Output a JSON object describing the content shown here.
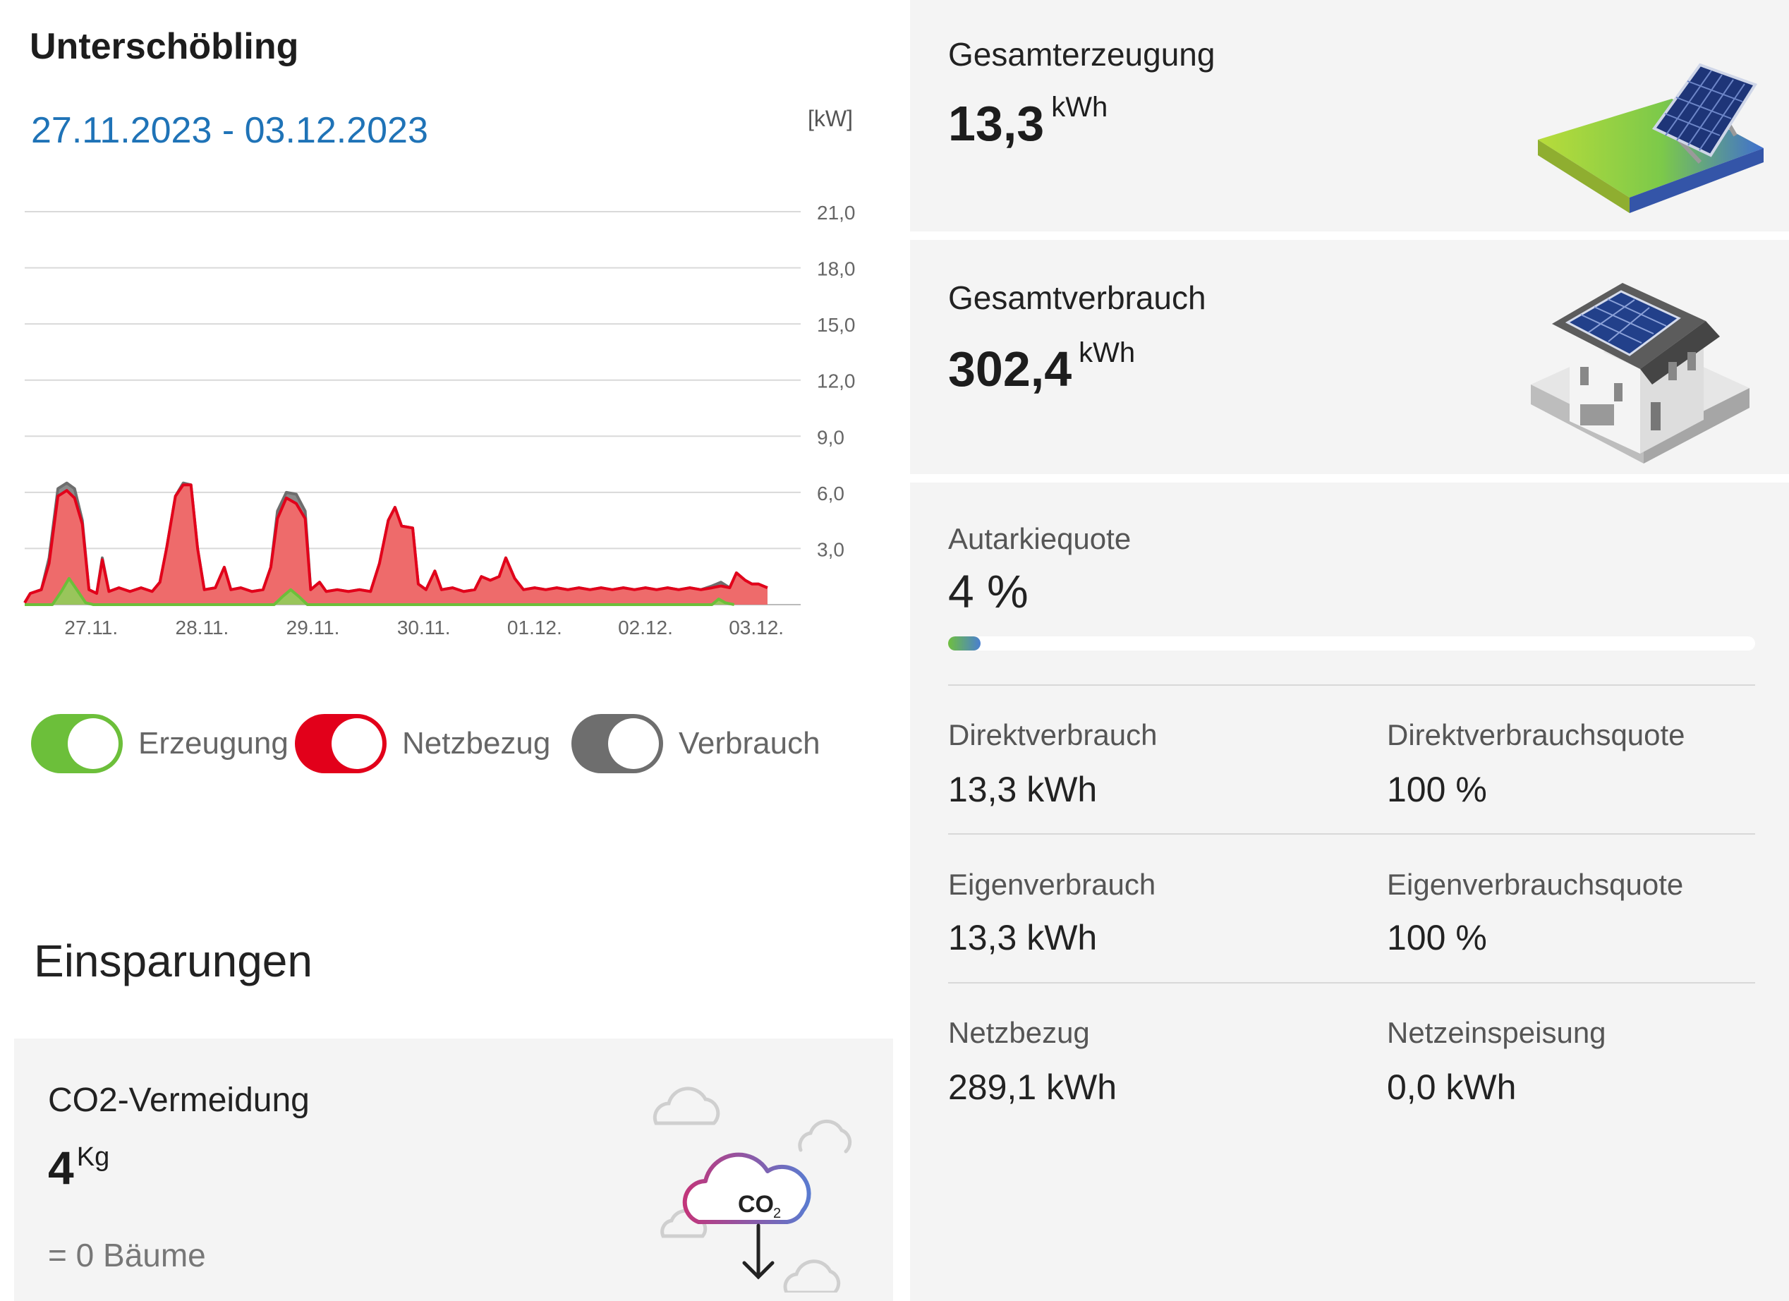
{
  "site": {
    "name": "Unterschöbling"
  },
  "period": {
    "range": "27.11.2023 - 03.12.2023"
  },
  "chart_data": {
    "type": "area",
    "unit": "[kW]",
    "x": [
      "27.11.",
      "28.11.",
      "29.11.",
      "30.11.",
      "01.12.",
      "02.12.",
      "03.12."
    ],
    "xlim": [
      0,
      7
    ],
    "ylim": [
      0,
      21
    ],
    "y_ticks": [
      "3,0",
      "6,0",
      "9,0",
      "12,0",
      "15,0",
      "18,0",
      "21,0"
    ],
    "grid": true,
    "series": [
      {
        "name": "Verbrauch",
        "color": "#777777",
        "points": [
          [
            0,
            0.1
          ],
          [
            0.05,
            0.6
          ],
          [
            0.15,
            0.8
          ],
          [
            0.22,
            2.5
          ],
          [
            0.3,
            6.2
          ],
          [
            0.38,
            6.5
          ],
          [
            0.45,
            6.2
          ],
          [
            0.52,
            4.5
          ],
          [
            0.58,
            0.8
          ],
          [
            0.65,
            0.6
          ],
          [
            0.7,
            2.5
          ],
          [
            0.76,
            0.7
          ],
          [
            0.85,
            0.9
          ],
          [
            0.95,
            0.7
          ],
          [
            1.05,
            0.9
          ],
          [
            1.15,
            0.7
          ],
          [
            1.22,
            1.2
          ],
          [
            1.28,
            3.0
          ],
          [
            1.36,
            5.8
          ],
          [
            1.43,
            6.5
          ],
          [
            1.5,
            6.4
          ],
          [
            1.56,
            3.0
          ],
          [
            1.62,
            0.8
          ],
          [
            1.72,
            0.9
          ],
          [
            1.8,
            2.0
          ],
          [
            1.86,
            0.8
          ],
          [
            1.95,
            0.9
          ],
          [
            2.05,
            0.7
          ],
          [
            2.15,
            0.8
          ],
          [
            2.22,
            2.0
          ],
          [
            2.28,
            5.0
          ],
          [
            2.36,
            6.0
          ],
          [
            2.45,
            5.9
          ],
          [
            2.53,
            5.0
          ],
          [
            2.58,
            0.8
          ],
          [
            2.66,
            1.2
          ],
          [
            2.72,
            0.7
          ],
          [
            2.82,
            0.8
          ],
          [
            2.92,
            0.7
          ],
          [
            3.02,
            0.8
          ],
          [
            3.12,
            0.7
          ],
          [
            3.2,
            2.2
          ],
          [
            3.28,
            4.5
          ],
          [
            3.34,
            5.2
          ],
          [
            3.4,
            4.2
          ],
          [
            3.5,
            4.1
          ],
          [
            3.55,
            1.1
          ],
          [
            3.62,
            0.8
          ],
          [
            3.7,
            1.8
          ],
          [
            3.76,
            0.8
          ],
          [
            3.86,
            0.9
          ],
          [
            3.96,
            0.7
          ],
          [
            4.06,
            0.8
          ],
          [
            4.12,
            1.5
          ],
          [
            4.2,
            1.3
          ],
          [
            4.28,
            1.5
          ],
          [
            4.34,
            2.5
          ],
          [
            4.42,
            1.4
          ],
          [
            4.5,
            0.8
          ],
          [
            4.6,
            0.9
          ],
          [
            4.7,
            0.8
          ],
          [
            4.8,
            0.9
          ],
          [
            4.9,
            0.8
          ],
          [
            5.0,
            0.9
          ],
          [
            5.1,
            0.8
          ],
          [
            5.2,
            0.9
          ],
          [
            5.3,
            0.8
          ],
          [
            5.4,
            0.9
          ],
          [
            5.5,
            0.8
          ],
          [
            5.6,
            0.9
          ],
          [
            5.7,
            0.8
          ],
          [
            5.8,
            0.9
          ],
          [
            5.9,
            0.8
          ],
          [
            6.0,
            0.9
          ],
          [
            6.1,
            0.8
          ],
          [
            6.2,
            1.0
          ],
          [
            6.28,
            1.2
          ],
          [
            6.36,
            0.9
          ],
          [
            6.42,
            1.7
          ],
          [
            6.5,
            1.3
          ],
          [
            6.56,
            1.1
          ],
          [
            6.62,
            1.1
          ],
          [
            6.66,
            1.0
          ],
          [
            6.7,
            0.9
          ]
        ]
      },
      {
        "name": "Netzbezug",
        "color": "#e2001a",
        "points": [
          [
            0,
            0.1
          ],
          [
            0.05,
            0.6
          ],
          [
            0.15,
            0.8
          ],
          [
            0.22,
            2.2
          ],
          [
            0.3,
            5.8
          ],
          [
            0.38,
            6.1
          ],
          [
            0.45,
            5.7
          ],
          [
            0.52,
            4.3
          ],
          [
            0.58,
            0.8
          ],
          [
            0.65,
            0.6
          ],
          [
            0.7,
            2.4
          ],
          [
            0.76,
            0.7
          ],
          [
            0.85,
            0.9
          ],
          [
            0.95,
            0.7
          ],
          [
            1.05,
            0.9
          ],
          [
            1.15,
            0.7
          ],
          [
            1.22,
            1.2
          ],
          [
            1.28,
            3.0
          ],
          [
            1.36,
            5.8
          ],
          [
            1.43,
            6.4
          ],
          [
            1.5,
            6.4
          ],
          [
            1.56,
            3.0
          ],
          [
            1.62,
            0.8
          ],
          [
            1.72,
            0.9
          ],
          [
            1.8,
            2.0
          ],
          [
            1.86,
            0.8
          ],
          [
            1.95,
            0.9
          ],
          [
            2.05,
            0.7
          ],
          [
            2.15,
            0.8
          ],
          [
            2.22,
            2.0
          ],
          [
            2.28,
            4.6
          ],
          [
            2.36,
            5.7
          ],
          [
            2.45,
            5.4
          ],
          [
            2.53,
            4.6
          ],
          [
            2.58,
            0.8
          ],
          [
            2.66,
            1.2
          ],
          [
            2.72,
            0.7
          ],
          [
            2.82,
            0.8
          ],
          [
            2.92,
            0.7
          ],
          [
            3.02,
            0.8
          ],
          [
            3.12,
            0.7
          ],
          [
            3.2,
            2.2
          ],
          [
            3.28,
            4.5
          ],
          [
            3.34,
            5.2
          ],
          [
            3.4,
            4.2
          ],
          [
            3.5,
            4.1
          ],
          [
            3.55,
            1.1
          ],
          [
            3.62,
            0.8
          ],
          [
            3.7,
            1.8
          ],
          [
            3.76,
            0.8
          ],
          [
            3.86,
            0.9
          ],
          [
            3.96,
            0.7
          ],
          [
            4.06,
            0.8
          ],
          [
            4.12,
            1.5
          ],
          [
            4.2,
            1.3
          ],
          [
            4.28,
            1.5
          ],
          [
            4.34,
            2.5
          ],
          [
            4.42,
            1.4
          ],
          [
            4.5,
            0.8
          ],
          [
            4.6,
            0.9
          ],
          [
            4.7,
            0.8
          ],
          [
            4.8,
            0.9
          ],
          [
            4.9,
            0.8
          ],
          [
            5.0,
            0.9
          ],
          [
            5.1,
            0.8
          ],
          [
            5.2,
            0.9
          ],
          [
            5.3,
            0.8
          ],
          [
            5.4,
            0.9
          ],
          [
            5.5,
            0.8
          ],
          [
            5.6,
            0.9
          ],
          [
            5.7,
            0.8
          ],
          [
            5.8,
            0.9
          ],
          [
            5.9,
            0.8
          ],
          [
            6.0,
            0.9
          ],
          [
            6.1,
            0.8
          ],
          [
            6.2,
            0.9
          ],
          [
            6.28,
            1.0
          ],
          [
            6.36,
            0.9
          ],
          [
            6.42,
            1.7
          ],
          [
            6.5,
            1.3
          ],
          [
            6.56,
            1.1
          ],
          [
            6.62,
            1.1
          ],
          [
            6.66,
            1.0
          ],
          [
            6.7,
            0.9
          ]
        ]
      },
      {
        "name": "Erzeugung",
        "color": "#6cbf3a",
        "points": [
          [
            0,
            0
          ],
          [
            0.25,
            0
          ],
          [
            0.33,
            0.7
          ],
          [
            0.4,
            1.4
          ],
          [
            0.47,
            0.8
          ],
          [
            0.55,
            0.1
          ],
          [
            0.62,
            0
          ],
          [
            2.25,
            0
          ],
          [
            2.32,
            0.4
          ],
          [
            2.4,
            0.8
          ],
          [
            2.48,
            0.4
          ],
          [
            2.55,
            0
          ],
          [
            6.2,
            0
          ],
          [
            6.26,
            0.3
          ],
          [
            6.32,
            0.1
          ],
          [
            6.4,
            0
          ]
        ]
      }
    ]
  },
  "legend": [
    {
      "label": "Erzeugung",
      "color": "#6cbf3a"
    },
    {
      "label": "Netzbezug",
      "color": "#e2001a"
    },
    {
      "label": "Verbrauch",
      "color": "#6e6e6e"
    }
  ],
  "savings": {
    "title": "Einsparungen",
    "co2_title": "CO2-Vermeidung",
    "co2_value": "4",
    "co2_unit": "Kg",
    "trees": "= 0 Bäume",
    "icon_text": "CO",
    "icon_sub": "2",
    "icon": "co2-cloud-icon"
  },
  "generation": {
    "title": "Gesamterzeugung",
    "value": "13,3",
    "unit": "kWh",
    "icon": "solar-panel-icon"
  },
  "consumption": {
    "title": "Gesamtverbrauch",
    "value": "302,4",
    "unit": "kWh",
    "icon": "house-solar-icon"
  },
  "autarky": {
    "title": "Autarkiequote",
    "value": "4 %",
    "fraction": 0.04
  },
  "stats": [
    {
      "label": "Direktverbrauch",
      "value": "13,3 kWh"
    },
    {
      "label": "Direktverbrauchsquote",
      "value": "100 %"
    },
    {
      "label": "Eigenverbrauch",
      "value": "13,3 kWh"
    },
    {
      "label": "Eigenverbrauchsquote",
      "value": "100 %"
    },
    {
      "label": "Netzbezug",
      "value": "289,1 kWh"
    },
    {
      "label": "Netzeinspeisung",
      "value": "0,0 kWh"
    }
  ]
}
